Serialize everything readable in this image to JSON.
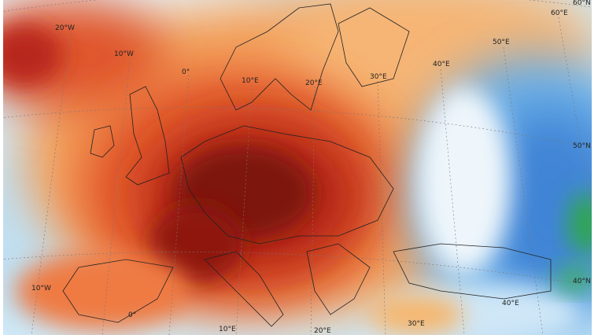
{
  "map": {
    "grid_labels": [
      "20°W",
      "10°W",
      "0°",
      "10°E",
      "20°E",
      "30°E",
      "40°E",
      "50°E",
      "60°E",
      "60°N",
      "50°N",
      "40°N",
      "10°W",
      "0°",
      "10°E",
      "20°E",
      "30°E",
      "40°E"
    ]
  }
}
